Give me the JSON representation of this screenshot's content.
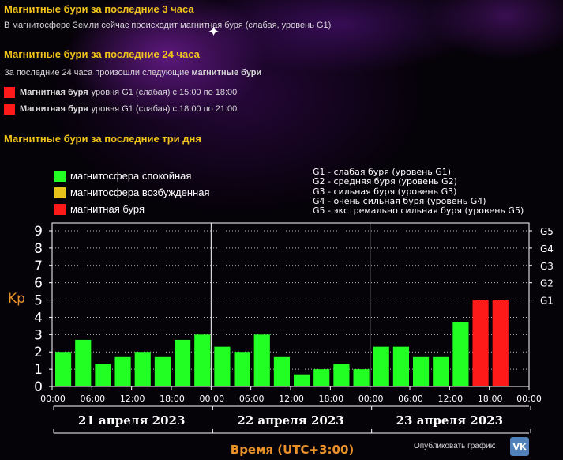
{
  "sections": {
    "last3h": {
      "title": "Магнитные бури за последние 3 часа",
      "text": "В магнитосфере Земли сейчас происходит магнитная буря (слабая, уровень G1)"
    },
    "last24h": {
      "title": "Магнитные бури за последние 24 часа",
      "intro": "За последние 24 часа произошли следующие",
      "intro_bold": "магнитные бури",
      "storms": [
        {
          "label": "Магнитная буря",
          "text": "уровня G1 (слабая) с 15:00 по 18:00"
        },
        {
          "label": "Магнитная буря",
          "text": "уровня G1 (слабая) с 18:00 по 21:00"
        }
      ]
    },
    "last3days": {
      "title": "Магнитные бури за последние три дня"
    }
  },
  "legend": [
    {
      "label": "магнитосфера спокойная",
      "color": "#22ff22"
    },
    {
      "label": "магнитосфера возбужденная",
      "color": "#e6c21a"
    },
    {
      "label": "магнитная буря",
      "color": "#ff1a1a"
    }
  ],
  "g_legend": [
    "G1 - слабая буря (уровень G1)",
    "G2 - средняя буря (уровень G2)",
    "G3 - сильная буря (уровень G3)",
    "G4 - очень сильная буря (уровень G4)",
    "G5 - экстремально сильная буря (уровень G5)"
  ],
  "publish": {
    "label": "Опубликовать график:",
    "icon": "vk-icon",
    "icon_text": "VK"
  },
  "chart_data": {
    "type": "bar",
    "ylabel": "Kp",
    "xlabel": "Время (UTC+3:00)",
    "ylim": [
      0,
      9
    ],
    "yticks": [
      0,
      1,
      2,
      3,
      4,
      5,
      6,
      7,
      8,
      9
    ],
    "right_ticks": [
      {
        "label": "G1",
        "value": 5
      },
      {
        "label": "G2",
        "value": 6
      },
      {
        "label": "G3",
        "value": 7
      },
      {
        "label": "G4",
        "value": 8
      },
      {
        "label": "G5",
        "value": 9
      }
    ],
    "days": [
      "21 апреля 2023",
      "22 апреля 2023",
      "23 апреля 2023"
    ],
    "time_ticks": [
      "00:00",
      "06:00",
      "12:00",
      "18:00"
    ],
    "end_tick": "00:00",
    "grid": "dotted horizontal",
    "colors": {
      "quiet": "#22ff22",
      "storm": "#ff1a1a"
    },
    "values": [
      [
        2.0,
        2.7,
        1.3,
        1.7,
        2.0,
        1.7,
        2.7,
        3.0
      ],
      [
        2.3,
        2.0,
        3.0,
        1.7,
        0.7,
        1.0,
        1.3,
        1.0
      ],
      [
        2.3,
        2.3,
        1.7,
        1.7,
        3.7,
        5.0,
        5.0,
        null
      ]
    ],
    "status": [
      [
        "quiet",
        "quiet",
        "quiet",
        "quiet",
        "quiet",
        "quiet",
        "quiet",
        "quiet"
      ],
      [
        "quiet",
        "quiet",
        "quiet",
        "quiet",
        "quiet",
        "quiet",
        "quiet",
        "quiet"
      ],
      [
        "quiet",
        "quiet",
        "quiet",
        "quiet",
        "quiet",
        "storm",
        "storm",
        null
      ]
    ]
  }
}
